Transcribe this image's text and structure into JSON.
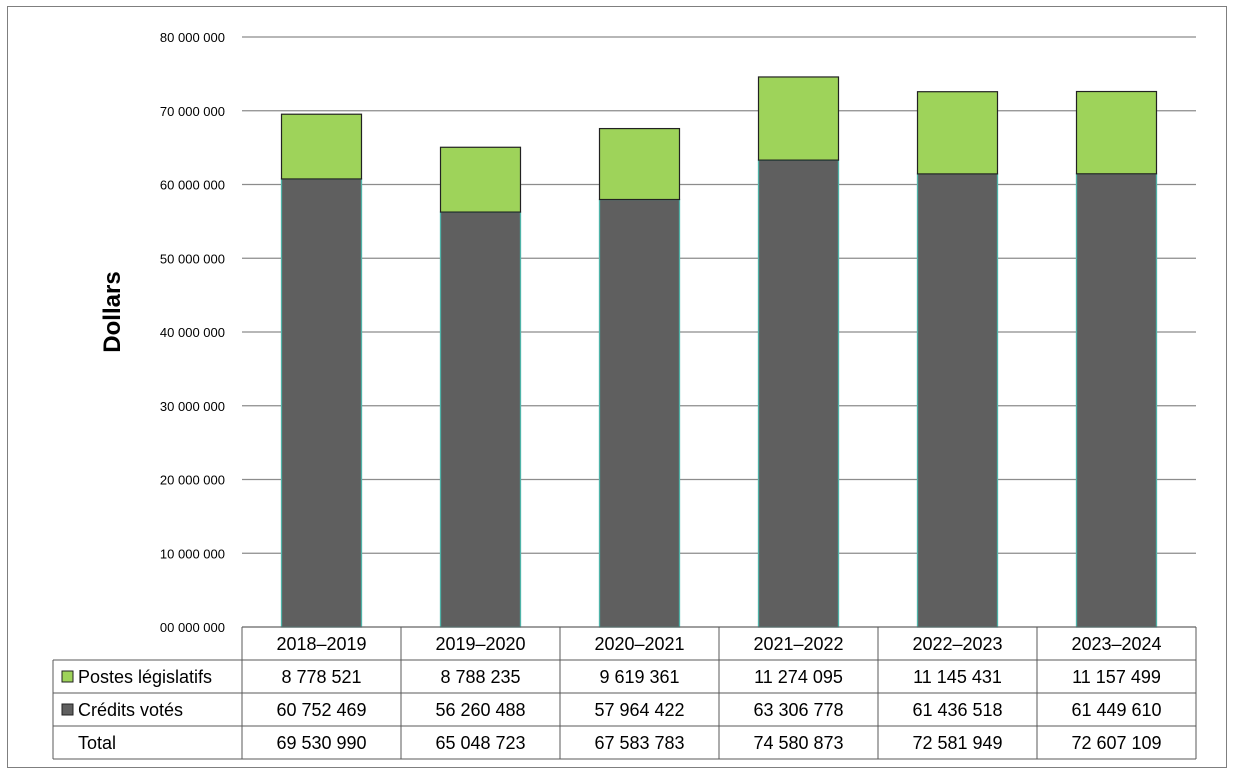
{
  "chart_data": {
    "type": "bar",
    "stacked": true,
    "ylabel": "Dollars",
    "ylim": [
      0,
      80000000
    ],
    "y_ticks": [
      "00 000 000",
      "10 000 000",
      "20 000 000",
      "30 000 000",
      "40 000 000",
      "50 000 000",
      "60 000 000",
      "70 000 000",
      "80 000 000"
    ],
    "y_tick_values": [
      0,
      10000000,
      20000000,
      30000000,
      40000000,
      50000000,
      60000000,
      70000000,
      80000000
    ],
    "grid": true,
    "categories": [
      "2018–2019",
      "2019–2020",
      "2020–2021",
      "2021–2022",
      "2022–2023",
      "2023–2024"
    ],
    "series": [
      {
        "name": "Crédits votés",
        "color": "#5f5f5f",
        "values": [
          60752469,
          56260488,
          57964422,
          63306778,
          61436518,
          61449610
        ],
        "labels": [
          "60 752 469",
          "56 260 488",
          "57 964 422",
          "63 306 778",
          "61 436 518",
          "61 449 610"
        ]
      },
      {
        "name": "Postes législatifs",
        "color": "#9ed35a",
        "values": [
          8778521,
          8788235,
          9619361,
          11274095,
          11145431,
          11157499
        ],
        "labels": [
          "8 778 521",
          "8 788 235",
          "9 619 361",
          "11 274 095",
          "11 145 431",
          "11 157 499"
        ]
      }
    ],
    "table": {
      "rows": [
        {
          "label": "Postes législatifs",
          "series": 1
        },
        {
          "label": "Crédits votés",
          "series": 0
        },
        {
          "label": "Total",
          "series": null,
          "values": [
            "69 530 990",
            "65 048 723",
            "67 583 783",
            "74 580 873",
            "72 581 949",
            "72 607 109"
          ]
        }
      ]
    }
  }
}
